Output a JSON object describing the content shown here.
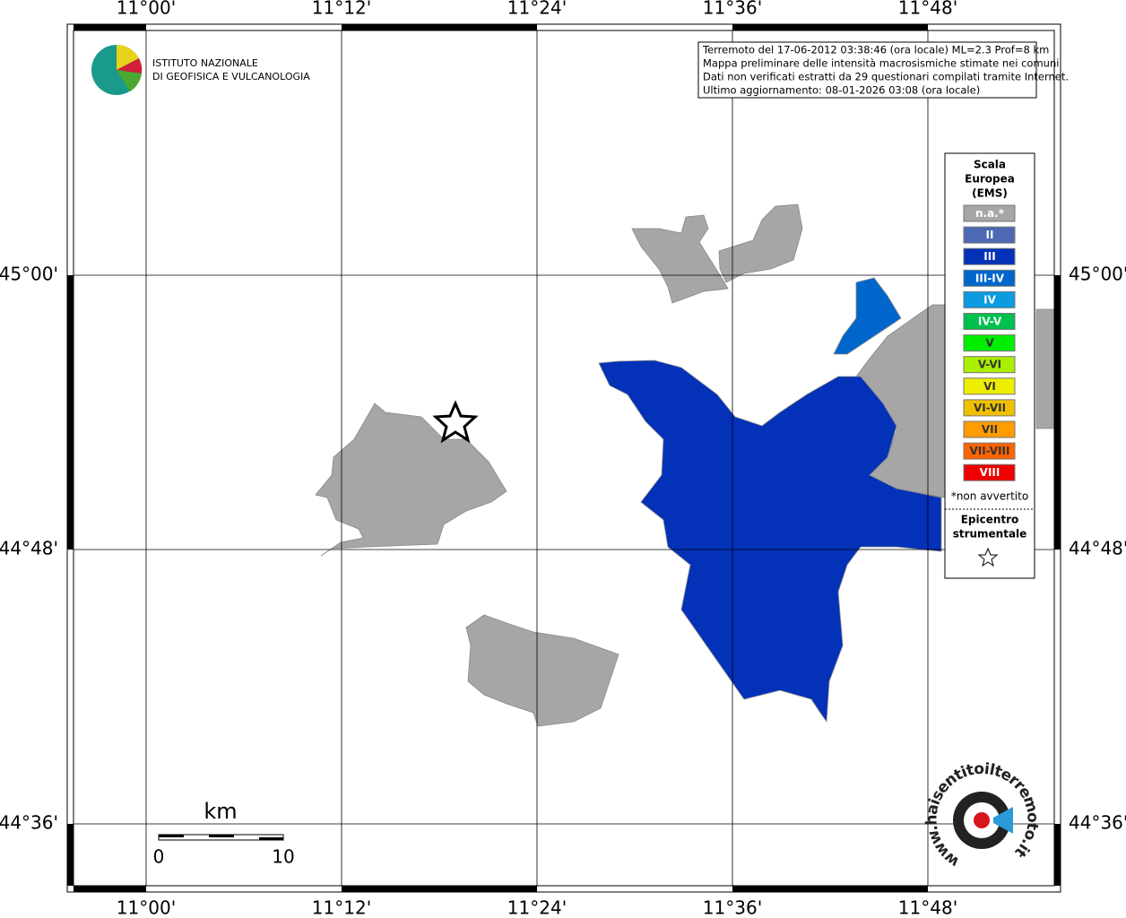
{
  "map": {
    "lon_labels": [
      "11°00'",
      "11°12'",
      "11°24'",
      "11°36'",
      "11°48'"
    ],
    "lat_labels": [
      "45°00'",
      "44°48'",
      "44°36'"
    ],
    "info": [
      "Terremoto del 17-06-2012 03:38:46 (ora locale) ML=2.3 Prof=8 km",
      "Mappa preliminare delle intensità macrosismiche stimate nei comuni",
      "Dati non verificati estratti da 29 questionari compilati tramite Internet.",
      "Ultimo aggiornamento: 08-01-2026 03:08 (ora locale)"
    ],
    "logo": [
      "ISTITUTO NAZIONALE",
      "DI GEOFISICA E VULCANOLOGIA"
    ],
    "legend": {
      "title": [
        "Scala",
        "Europea",
        "(EMS)"
      ],
      "items": [
        {
          "label": "n.a.*",
          "color": "#a6a6a6"
        },
        {
          "label": "II",
          "color": "#4d69b3"
        },
        {
          "label": "III",
          "color": "#0331b8"
        },
        {
          "label": "III-IV",
          "color": "#0066cc"
        },
        {
          "label": "IV",
          "color": "#0a9be0"
        },
        {
          "label": "IV-V",
          "color": "#00c04e"
        },
        {
          "label": "V",
          "color": "#00ee00"
        },
        {
          "label": "V-VI",
          "color": "#aaee00"
        },
        {
          "label": "VI",
          "color": "#eeee00"
        },
        {
          "label": "VI-VII",
          "color": "#f0c000"
        },
        {
          "label": "VII",
          "color": "#ff9c00"
        },
        {
          "label": "VII-VIII",
          "color": "#ff6400"
        },
        {
          "label": "VIII",
          "color": "#ee0000"
        }
      ],
      "note": "*non avvertito",
      "epicenter": [
        "Epicentro",
        "strumentale"
      ]
    },
    "scale": {
      "unit": "km",
      "labels": [
        "0",
        "10"
      ]
    },
    "site": "www.haisentitoilterremoto.it"
  }
}
